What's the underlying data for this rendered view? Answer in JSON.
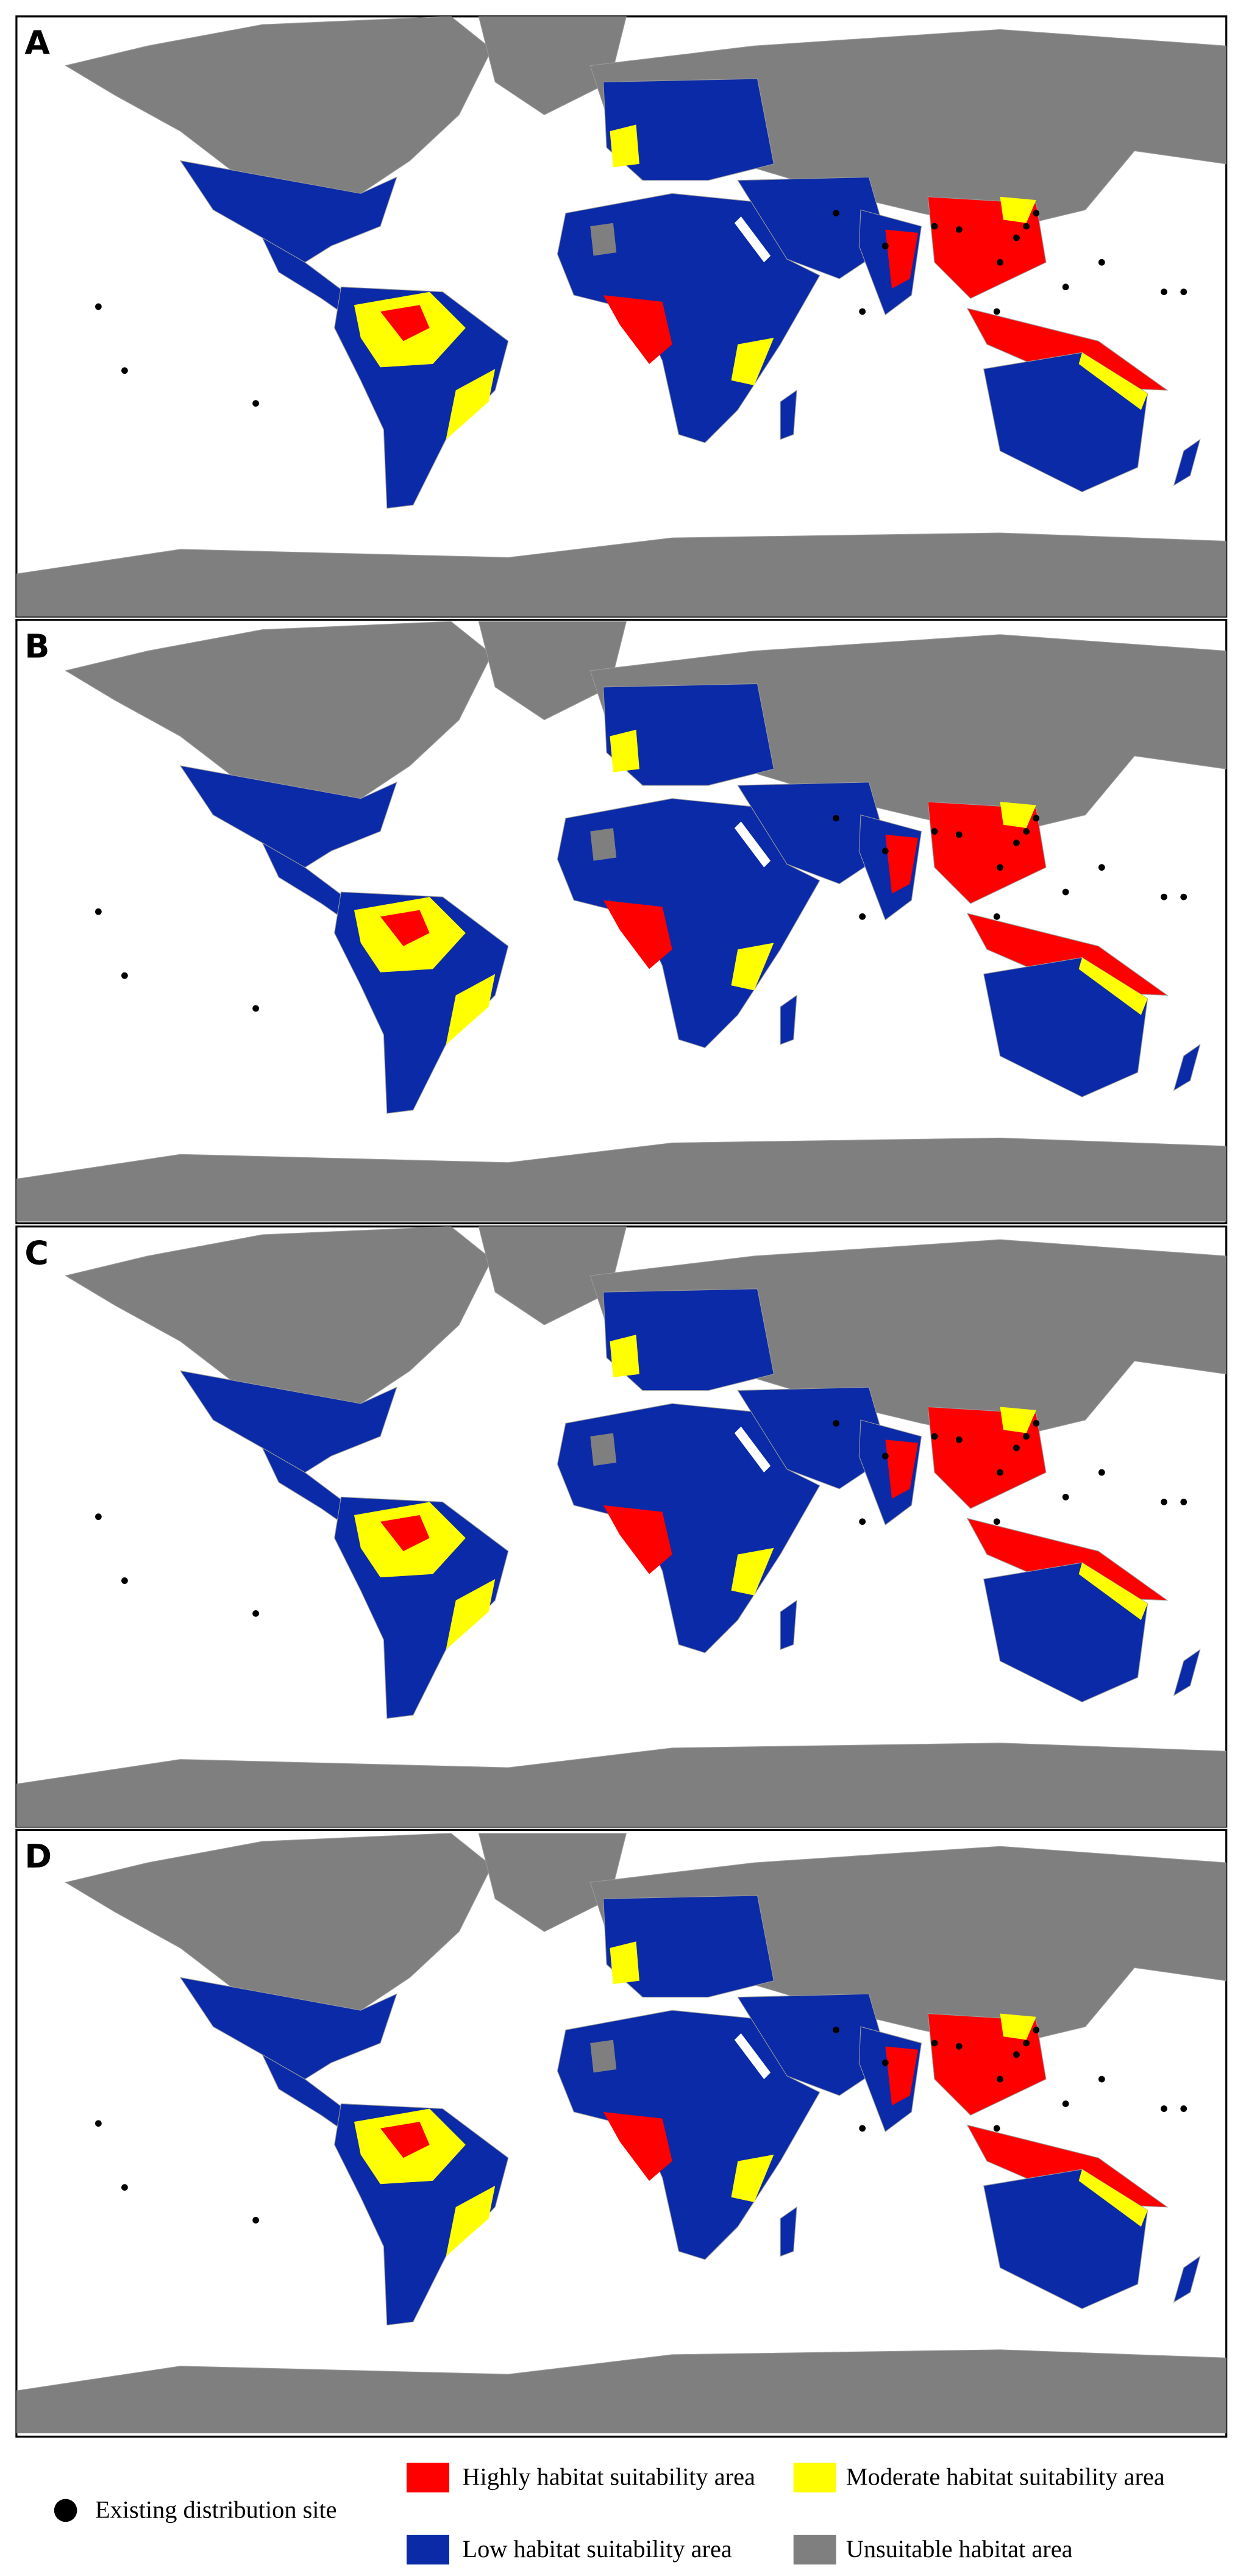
{
  "panels": [
    {
      "label": "A"
    },
    {
      "label": "B"
    },
    {
      "label": "C"
    },
    {
      "label": "D"
    }
  ],
  "legend": {
    "existing": "Existing distribution site",
    "high": "Highly habitat suitability area",
    "moderate": "Moderate habitat suitability area",
    "low": "Low habitat suitability area",
    "unsuitable": "Unsuitable habitat area"
  }
}
